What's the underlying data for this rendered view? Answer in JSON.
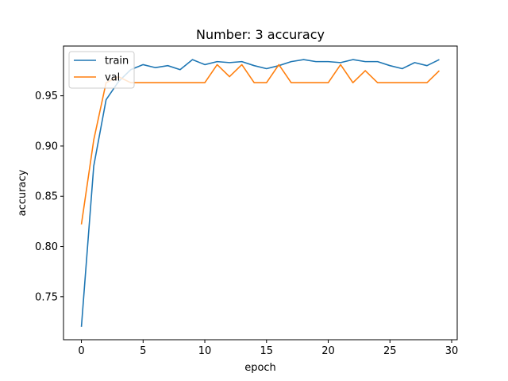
{
  "chart_data": {
    "type": "line",
    "title": "Number: 3 accuracy",
    "xlabel": "epoch",
    "ylabel": "accuracy",
    "xlim": [
      -1.45,
      30.45
    ],
    "ylim": [
      0.7072,
      0.9995
    ],
    "xticks": [
      0,
      5,
      10,
      15,
      20,
      25,
      30
    ],
    "xtick_labels": [
      "0",
      "5",
      "10",
      "15",
      "20",
      "25",
      "30"
    ],
    "yticks": [
      0.75,
      0.8,
      0.85,
      0.9,
      0.95
    ],
    "ytick_labels": [
      "0.75",
      "0.80",
      "0.85",
      "0.90",
      "0.95"
    ],
    "grid": false,
    "legend_position": "upper-left",
    "x": [
      0,
      1,
      2,
      3,
      4,
      5,
      6,
      7,
      8,
      9,
      10,
      11,
      12,
      13,
      14,
      15,
      16,
      17,
      18,
      19,
      20,
      21,
      22,
      23,
      24,
      25,
      26,
      27,
      28,
      29
    ],
    "series": [
      {
        "name": "train",
        "color": "#1f77b4",
        "values": [
          0.72,
          0.88,
          0.946,
          0.964,
          0.976,
          0.981,
          0.978,
          0.98,
          0.976,
          0.986,
          0.981,
          0.984,
          0.983,
          0.984,
          0.98,
          0.977,
          0.98,
          0.984,
          0.986,
          0.984,
          0.984,
          0.983,
          0.986,
          0.984,
          0.984,
          0.98,
          0.977,
          0.983,
          0.98,
          0.986
        ]
      },
      {
        "name": "val",
        "color": "#ff7f0e",
        "values": [
          0.822,
          0.906,
          0.963,
          0.969,
          0.963,
          0.963,
          0.963,
          0.963,
          0.963,
          0.963,
          0.963,
          0.981,
          0.969,
          0.981,
          0.963,
          0.963,
          0.981,
          0.963,
          0.963,
          0.963,
          0.963,
          0.981,
          0.963,
          0.975,
          0.963,
          0.963,
          0.963,
          0.963,
          0.963,
          0.975
        ]
      }
    ]
  }
}
